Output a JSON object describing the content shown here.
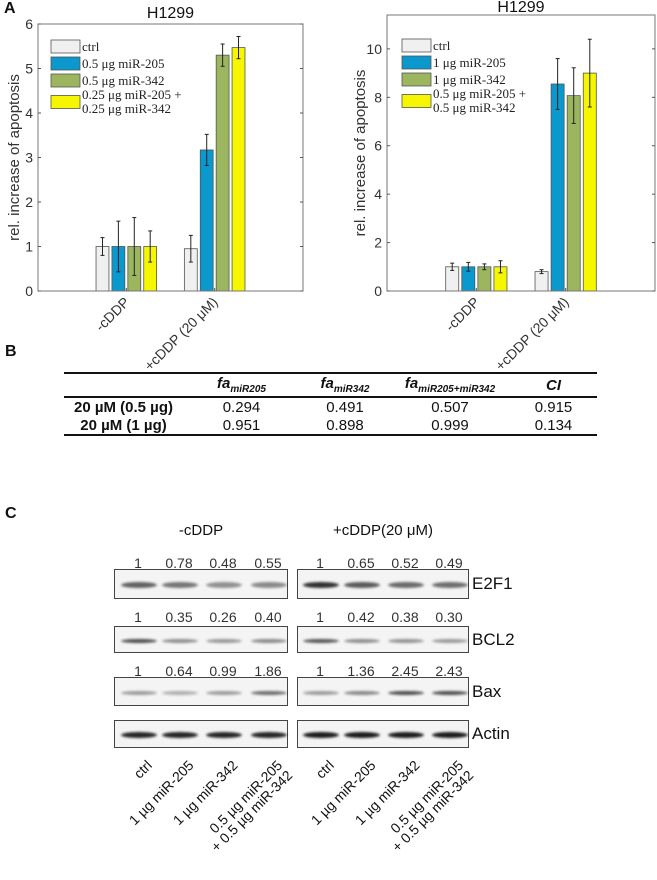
{
  "panels": {
    "a": "A",
    "b": "B",
    "c": "C"
  },
  "chart_data": [
    {
      "type": "bar",
      "title": "H1299",
      "ylabel": "rel. increase of apoptosis",
      "xlabel": "",
      "categories": [
        "-cDDP",
        "+cDDP (20 μM)"
      ],
      "ylim": [
        0,
        6
      ],
      "yticks": [
        0,
        1,
        2,
        3,
        4,
        5,
        6
      ],
      "legend_position": "top-left",
      "grid": false,
      "series": [
        {
          "name": "ctrl",
          "color": "#f0f0f0",
          "values": [
            1.0,
            0.95
          ],
          "errors": [
            0.2,
            0.3
          ]
        },
        {
          "name": "0.5 μg miR-205",
          "color": "#0b98cc",
          "values": [
            1.0,
            3.17
          ],
          "errors": [
            0.57,
            0.35
          ]
        },
        {
          "name": "0.5 μg miR-342",
          "color": "#9cb660",
          "values": [
            1.0,
            5.3
          ],
          "errors": [
            0.65,
            0.25
          ]
        },
        {
          "name": "0.25 μg miR-205 + 0.25 μg miR-342",
          "color": "#f6f600",
          "values": [
            1.0,
            5.47
          ],
          "errors": [
            0.35,
            0.25
          ]
        }
      ]
    },
    {
      "type": "bar",
      "title": "H1299",
      "ylabel": "rel. increase of apoptosis",
      "xlabel": "",
      "categories": [
        "-cDDP",
        "+cDDP (20 μM)"
      ],
      "ylim": [
        0,
        11.4
      ],
      "yticks": [
        0,
        2,
        4,
        6,
        8,
        10
      ],
      "legend_position": "top-left",
      "grid": false,
      "series": [
        {
          "name": "ctrl",
          "color": "#f0f0f0",
          "values": [
            1.0,
            0.8
          ],
          "errors": [
            0.15,
            0.08
          ]
        },
        {
          "name": "1 μg miR-205",
          "color": "#0b98cc",
          "values": [
            1.0,
            8.55
          ],
          "errors": [
            0.18,
            1.05
          ]
        },
        {
          "name": "1 μg miR-342",
          "color": "#9cb660",
          "values": [
            1.0,
            8.07
          ],
          "errors": [
            0.12,
            1.15
          ]
        },
        {
          "name": "0.5 μg miR-205 + 0.5 μg miR-342",
          "color": "#f6f600",
          "values": [
            1.0,
            9.0
          ],
          "errors": [
            0.25,
            1.4
          ]
        }
      ]
    }
  ],
  "table": {
    "headers": [
      {
        "main": "fa",
        "sub": "miR205"
      },
      {
        "main": "fa",
        "sub": "miR342"
      },
      {
        "main": "fa",
        "sub": "miR205+miR342"
      },
      {
        "main": "CI",
        "sub": ""
      }
    ],
    "rows": [
      {
        "label": "20 µM (0.5 µg)",
        "values": [
          "0.294",
          "0.491",
          "0.507",
          "0.915"
        ]
      },
      {
        "label": "20 µM (1 µg)",
        "values": [
          "0.951",
          "0.898",
          "0.999",
          "0.134"
        ]
      }
    ]
  },
  "blot": {
    "groups": [
      "-cDDP",
      "+cDDP(20 μM)"
    ],
    "proteins": [
      {
        "name": "E2F1",
        "values": [
          [
            "1",
            "0.78",
            "0.48",
            "0.55"
          ],
          [
            "1",
            "0.65",
            "0.52",
            "0.49"
          ]
        ]
      },
      {
        "name": "BCL2",
        "values": [
          [
            "1",
            "0.35",
            "0.26",
            "0.40"
          ],
          [
            "1",
            "0.42",
            "0.38",
            "0.30"
          ]
        ]
      },
      {
        "name": "Bax",
        "values": [
          [
            "1",
            "0.64",
            "0.99",
            "1.86"
          ],
          [
            "1",
            "1.36",
            "2.45",
            "2.43"
          ]
        ]
      },
      {
        "name": "Actin",
        "values": null
      }
    ],
    "lanes": [
      [
        "ctrl"
      ],
      [
        "1 µg miR-205"
      ],
      [
        "1 µg miR-342"
      ],
      [
        "0.5 µg miR-205",
        "+ 0.5 µg miR-342"
      ]
    ]
  }
}
